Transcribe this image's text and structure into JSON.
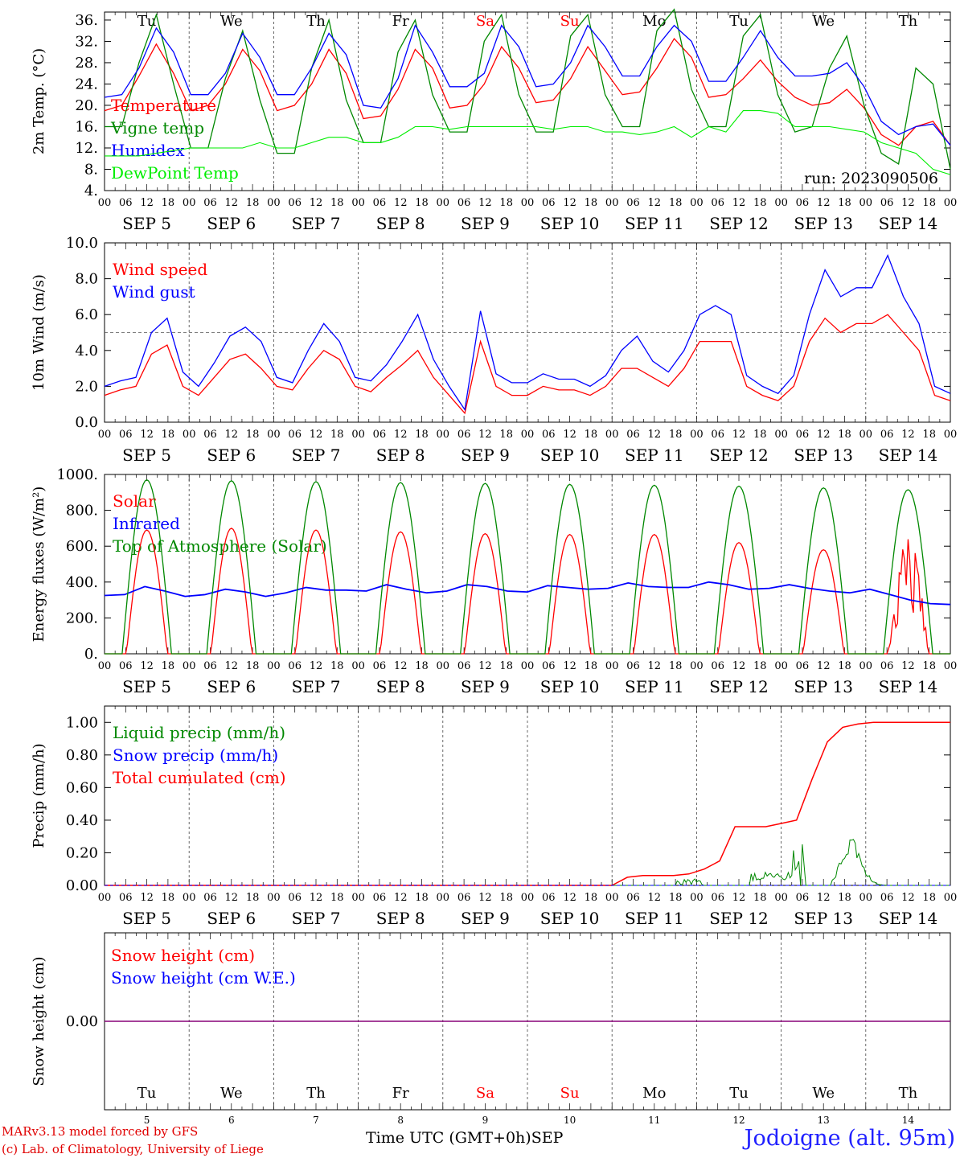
{
  "chart_data": [
    {
      "type": "line",
      "ylabel": "2m Temp. (°C)",
      "yticks": [
        "4.",
        "8.",
        "12.",
        "16.",
        "20.",
        "24.",
        "28.",
        "32.",
        "36."
      ],
      "ylim": [
        4,
        37.5
      ],
      "run_label": "run: 2023090506",
      "series": [
        {
          "name": "Temperature",
          "color": "#ff0000",
          "values": [
            19,
            20,
            25.5,
            31.5,
            26,
            19,
            20,
            24,
            30.5,
            26.5,
            19,
            20,
            24,
            30.5,
            26,
            17.5,
            18,
            23,
            30.5,
            27,
            19.5,
            20,
            24,
            31,
            27,
            20.5,
            21,
            25,
            31,
            26.5,
            22,
            22.5,
            27,
            32.5,
            29,
            21.5,
            22,
            25,
            28.5,
            24.5,
            21.5,
            20,
            20.5,
            23,
            19.5,
            14.5,
            12.5,
            16,
            17,
            12.5
          ]
        },
        {
          "name": "Vigne temp",
          "color": "#008800",
          "values": [
            16,
            16,
            28,
            37,
            24,
            12,
            12,
            25,
            34,
            21,
            11,
            11,
            27,
            36,
            21,
            13,
            13,
            30,
            36,
            22,
            15,
            15,
            32,
            37,
            22,
            15,
            15,
            33,
            37,
            22,
            16,
            16,
            34,
            38,
            23,
            16,
            16,
            33,
            37,
            22,
            15,
            16,
            27,
            33,
            20,
            11,
            9,
            27,
            24,
            8
          ]
        },
        {
          "name": "Humidex",
          "color": "#0000ff",
          "values": [
            21.5,
            22,
            27,
            34.5,
            30,
            22,
            22,
            26,
            33.5,
            29,
            22,
            22,
            27,
            33.5,
            29.5,
            20,
            19.5,
            25,
            35,
            30,
            23.5,
            23.5,
            26,
            35,
            31,
            23.5,
            24,
            28,
            35,
            31,
            25.5,
            25.5,
            31,
            35,
            32,
            24.5,
            24.5,
            29,
            34,
            29,
            25.5,
            25.5,
            26,
            28,
            23.5,
            17,
            14.5,
            16,
            16.5,
            12.5
          ]
        },
        {
          "name": "DewPoint Temp",
          "color": "#00ee00",
          "values": [
            10.5,
            10.5,
            10.5,
            11,
            11.5,
            12,
            12,
            12,
            12,
            13,
            12,
            12,
            13,
            14,
            14,
            13,
            13,
            14,
            16,
            16,
            15.5,
            16,
            16,
            16,
            16,
            16,
            15.5,
            16,
            16,
            15,
            15,
            14.5,
            15,
            16,
            14,
            16,
            15,
            19,
            19,
            18.5,
            16,
            16,
            16,
            15.5,
            15,
            13,
            12,
            11,
            8,
            7
          ]
        }
      ]
    },
    {
      "type": "line",
      "ylabel": "10m Wind (m/s)",
      "yticks": [
        "0.0",
        "2.0",
        "4.0",
        "6.0",
        "8.0",
        "10.0"
      ],
      "ylim": [
        0,
        10
      ],
      "reference_line": 5,
      "series": [
        {
          "name": "Wind speed",
          "color": "#ff0000",
          "values": [
            1.5,
            1.8,
            2.0,
            3.8,
            4.3,
            2.0,
            1.5,
            2.5,
            3.5,
            3.8,
            3.0,
            2.0,
            1.8,
            3.0,
            4.0,
            3.5,
            2.0,
            1.7,
            2.5,
            3.2,
            4.0,
            2.5,
            1.5,
            0.5,
            4.5,
            2.0,
            1.5,
            1.5,
            2.0,
            1.8,
            1.8,
            1.5,
            2.0,
            3.0,
            3.0,
            2.5,
            2.0,
            3.0,
            4.5,
            4.5,
            4.5,
            2.0,
            1.5,
            1.2,
            2.0,
            4.5,
            5.8,
            5.0,
            5.5,
            5.5,
            6.0,
            5.0,
            4.0,
            1.5,
            1.2
          ]
        },
        {
          "name": "Wind gust",
          "color": "#0000ff",
          "values": [
            2.0,
            2.3,
            2.5,
            5.0,
            5.8,
            2.8,
            2.0,
            3.3,
            4.8,
            5.3,
            4.5,
            2.5,
            2.2,
            4.0,
            5.5,
            4.5,
            2.5,
            2.3,
            3.2,
            4.5,
            6.0,
            3.5,
            2.0,
            0.7,
            6.2,
            2.7,
            2.2,
            2.2,
            2.7,
            2.4,
            2.4,
            2.0,
            2.6,
            4.0,
            4.8,
            3.4,
            2.8,
            4.0,
            6.0,
            6.5,
            6.0,
            2.6,
            2.0,
            1.6,
            2.6,
            6.0,
            8.5,
            7.0,
            7.5,
            7.5,
            9.3,
            7.0,
            5.5,
            2.0,
            1.6
          ]
        }
      ]
    },
    {
      "type": "line",
      "ylabel": "Energy fluxes (W/m²)",
      "yticks": [
        "0.",
        "200.",
        "400.",
        "600.",
        "800.",
        "1000."
      ],
      "ylim": [
        0,
        1000
      ],
      "series": [
        {
          "name": "Solar",
          "color": "#ff0000",
          "peaks": [
            690,
            700,
            690,
            680,
            670,
            665,
            665,
            620,
            580,
            680
          ]
        },
        {
          "name": "Infrared",
          "color": "#0000ff",
          "values": [
            325,
            330,
            375,
            350,
            320,
            330,
            360,
            345,
            320,
            340,
            370,
            355,
            355,
            350,
            385,
            360,
            340,
            350,
            385,
            375,
            350,
            345,
            380,
            370,
            360,
            365,
            395,
            375,
            370,
            370,
            400,
            385,
            360,
            365,
            385,
            365,
            350,
            340,
            360,
            330,
            300,
            280,
            275
          ]
        },
        {
          "name": "Top of Atmosphere (Solar)",
          "color": "#008800",
          "peaks": [
            970,
            965,
            960,
            955,
            950,
            945,
            940,
            935,
            925,
            915
          ]
        }
      ]
    },
    {
      "type": "line",
      "ylabel": "Precip (mm/h)",
      "yticks": [
        "0.00",
        "0.20",
        "0.40",
        "0.60",
        "0.80",
        "1.00"
      ],
      "ylim": [
        0,
        1.1
      ],
      "series": [
        {
          "name": "Liquid precip (mm/h)",
          "color": "#008800"
        },
        {
          "name": "Snow precip (mm/h)",
          "color": "#0000ff"
        },
        {
          "name": "Total cumulated (cm)",
          "color": "#ff0000",
          "values": [
            0,
            0,
            0,
            0,
            0,
            0,
            0,
            0,
            0,
            0,
            0,
            0,
            0,
            0,
            0,
            0,
            0,
            0,
            0,
            0,
            0,
            0,
            0,
            0,
            0,
            0,
            0,
            0,
            0,
            0,
            0,
            0,
            0,
            0,
            0.05,
            0.06,
            0.06,
            0.06,
            0.07,
            0.1,
            0.15,
            0.36,
            0.36,
            0.36,
            0.38,
            0.4,
            0.65,
            0.88,
            0.97,
            0.99,
            1.0,
            1.0,
            1.0,
            1.0,
            1.0,
            1.0
          ]
        }
      ]
    },
    {
      "type": "line",
      "ylabel": "Snow height (cm)",
      "yticks": [
        "0.00"
      ],
      "series": [
        {
          "name": "Snow height (cm)",
          "color": "#ff0000",
          "values": [
            0,
            0
          ]
        },
        {
          "name": "Snow height (cm W.E.)",
          "color": "#0000ff",
          "values": [
            0,
            0
          ]
        }
      ]
    }
  ],
  "x_axis": {
    "hour_ticks": [
      "00",
      "06",
      "12",
      "18"
    ],
    "dates": [
      "SEP  5",
      "SEP  6",
      "SEP  7",
      "SEP  8",
      "SEP  9",
      "SEP 10",
      "SEP 11",
      "SEP 12",
      "SEP 13",
      "SEP 14"
    ],
    "weekdays": [
      "Tu",
      "We",
      "Th",
      "Fr",
      "Sa",
      "Su",
      "Mo",
      "Tu",
      "We",
      "Th"
    ],
    "weekend_color": "#ff0000",
    "day_numbers": [
      "5",
      "6",
      "7",
      "8",
      "9",
      "10",
      "11",
      "12",
      "13",
      "14"
    ],
    "month": "SEP",
    "title": "Time UTC (GMT+0h)"
  },
  "footer": {
    "credit_line1": "MARv3.13 model forced by GFS",
    "credit_line2": "(c) Lab. of Climatology, University of Liege",
    "station": "Jodoigne (alt. 95m)"
  }
}
